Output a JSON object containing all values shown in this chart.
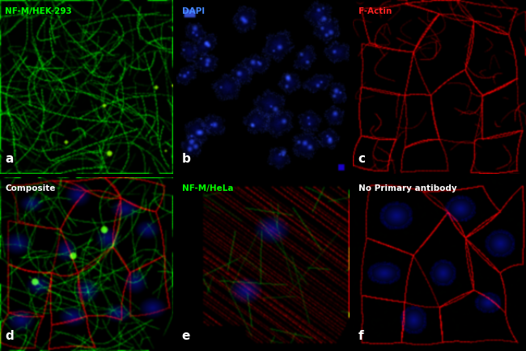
{
  "panels": [
    {
      "label": "a",
      "title": "NF-M/HEK-293",
      "title_color": "#00ff00",
      "label_color": "#ffffff",
      "row": 0,
      "col": 0
    },
    {
      "label": "b",
      "title": "DAPI",
      "title_color": "#4488ff",
      "label_color": "#ffffff",
      "row": 0,
      "col": 1
    },
    {
      "label": "c",
      "title": "F-Actin",
      "title_color": "#ff2222",
      "label_color": "#ffffff",
      "row": 0,
      "col": 2
    },
    {
      "label": "d",
      "title": "Composite",
      "title_color": "#ffffff",
      "label_color": "#ffffff",
      "row": 1,
      "col": 0
    },
    {
      "label": "e",
      "title": "NF-M/HeLa",
      "title_color": "#00ff00",
      "label_color": "#ffffff",
      "row": 1,
      "col": 1
    },
    {
      "label": "f",
      "title": "No Primary antibody",
      "title_color": "#ffffff",
      "label_color": "#ffffff",
      "row": 1,
      "col": 2
    }
  ],
  "figsize": [
    6.5,
    4.34
  ],
  "dpi": 100
}
